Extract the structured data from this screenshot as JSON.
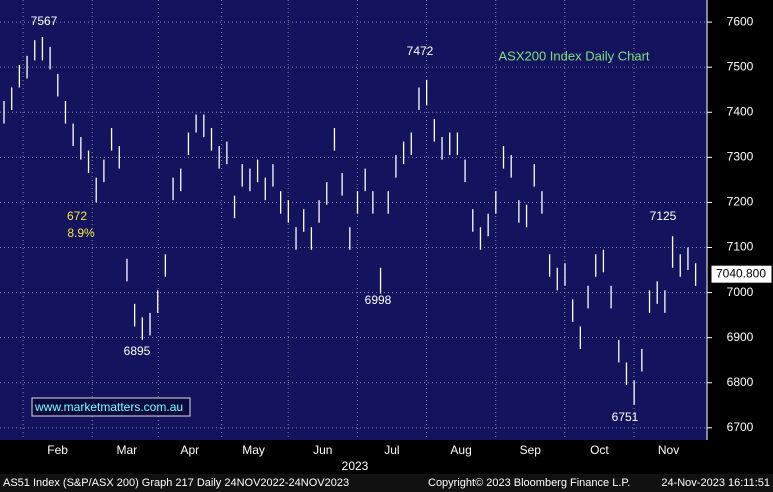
{
  "chart_data": {
    "type": "range-bar",
    "title": "ASX200 Index Daily Chart",
    "watermark": "www.marketmatters.com.au",
    "footer": [
      "AS51 Index (S&P/ASX 200) Graph 217  Daily 24NOV2022-24NOV2023",
      "Copyright© 2023 Bloomberg Finance L.P.",
      "24-Nov-2023 16:11:51"
    ],
    "x_label": "2023",
    "annotations": [
      "7567",
      "672",
      "8.9%",
      "7472",
      "6895",
      "6998",
      "7125",
      "6751"
    ],
    "last_price": {
      "value": 7040.8,
      "label": "7040.800"
    },
    "high": [
      7425,
      7455,
      7505,
      7525,
      7560,
      7567,
      7545,
      7485,
      7425,
      7375,
      7345,
      7315,
      7255,
      7295,
      7365,
      7325,
      7075,
      6975,
      6945,
      6955,
      7005,
      7085,
      7255,
      7275,
      7355,
      7395,
      7395,
      7365,
      7325,
      7335,
      7215,
      7285,
      7275,
      7295,
      7255,
      7285,
      7225,
      7205,
      7145,
      7185,
      7145,
      7205,
      7245,
      7365,
      7265,
      7145,
      7225,
      7275,
      7225,
      7055,
      7225,
      7305,
      7335,
      7355,
      7455,
      7472,
      7385,
      7345,
      7355,
      7355,
      7295,
      7185,
      7145,
      7175,
      7225,
      7325,
      7305,
      7205,
      7195,
      7285,
      7225,
      7085,
      7055,
      7065,
      6985,
      6925,
      7015,
      7085,
      7095,
      7015,
      6895,
      6845,
      6805,
      6875,
      7005,
      7025,
      7005,
      7125,
      7085,
      7100,
      7065
    ],
    "low": [
      7375,
      7405,
      7455,
      7475,
      7515,
      7515,
      7495,
      7435,
      7375,
      7325,
      7295,
      7265,
      7200,
      7245,
      7315,
      7275,
      7025,
      6925,
      6895,
      6905,
      6955,
      7035,
      7205,
      7225,
      7305,
      7355,
      7345,
      7315,
      7275,
      7285,
      7165,
      7235,
      7225,
      7245,
      7205,
      7235,
      7175,
      7155,
      7095,
      7135,
      7095,
      7155,
      7195,
      7315,
      7215,
      7095,
      7175,
      7225,
      7175,
      6998,
      7175,
      7255,
      7285,
      7305,
      7405,
      7415,
      7335,
      7295,
      7305,
      7305,
      7245,
      7135,
      7095,
      7125,
      7175,
      7275,
      7255,
      7155,
      7145,
      7235,
      7175,
      7035,
      7005,
      7015,
      6935,
      6875,
      6965,
      7035,
      7045,
      6965,
      6845,
      6795,
      6751,
      6825,
      6955,
      6975,
      6955,
      7055,
      7035,
      7050,
      7015
    ],
    "color": "#ffffff",
    "xlim": [
      0,
      92
    ],
    "xticks": [
      {
        "value": 7.5,
        "label": "Feb"
      },
      {
        "value": 16.5,
        "label": "Mar"
      },
      {
        "value": 24.7,
        "label": "Apr"
      },
      {
        "value": 33,
        "label": "May"
      },
      {
        "value": 42,
        "label": "Jun"
      },
      {
        "value": 51,
        "label": "Jul"
      },
      {
        "value": 60,
        "label": "Aug"
      },
      {
        "value": 69,
        "label": "Sep"
      },
      {
        "value": 78,
        "label": "Oct"
      },
      {
        "value": 87,
        "label": "Nov"
      }
    ],
    "ylim": [
      6673,
      7649
    ],
    "yticks": [
      6700,
      6800,
      6900,
      7000,
      7100,
      7200,
      7300,
      7400,
      7500,
      7600
    ],
    "grid": true
  }
}
